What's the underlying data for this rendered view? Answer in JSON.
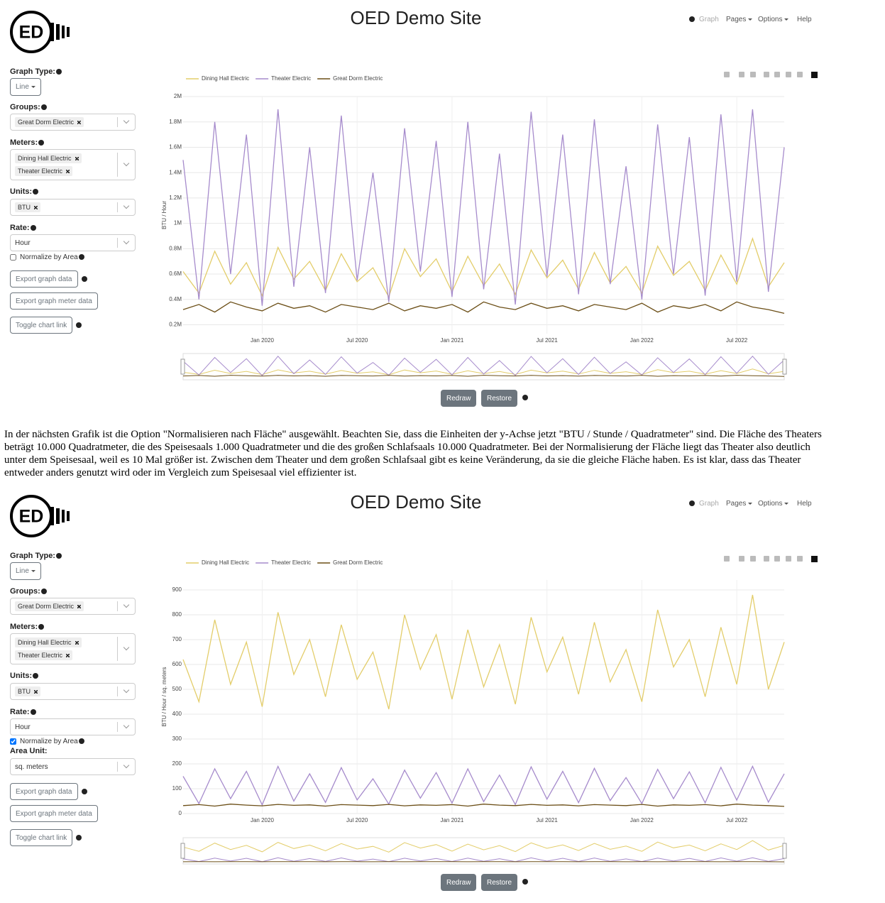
{
  "paragraph": "In der nächsten Grafik ist die Option \"Normalisieren nach Fläche\" ausgewählt. Beachten Sie, dass die Einheiten der y-Achse jetzt \"BTU / Stunde / Quadratmeter\" sind. Die Fläche des Theaters beträgt 10.000 Quadratmeter, die des Speisesaals 1.000 Quadratmeter und die des großen Schlafsaals 10.000 Quadratmeter. Bei der Normalisierung der Fläche liegt das Theater also deutlich unter dem Speisesaal, weil es 10 Mal größer ist. Zwischen dem Theater und dem großen Schlafsaal gibt es keine Veränderung, da sie die gleiche Fläche haben. Es ist klar, dass das Theater entweder anders genutzt wird oder im Vergleich zum Speisesaal viel effizienter ist.",
  "screens": [
    {
      "header": {
        "logo": "ED",
        "title": "OED Demo Site",
        "nav": [
          "Graph",
          "Pages",
          "Options",
          "Help"
        ]
      },
      "sidebar": {
        "graph_type_label": "Graph Type:",
        "graph_type": "Line",
        "groups_label": "Groups:",
        "groups": [
          "Great Dorm Electric"
        ],
        "meters_label": "Meters:",
        "meters": [
          "Dining Hall Electric",
          "Theater Electric"
        ],
        "units_label": "Units:",
        "units": [
          "BTU"
        ],
        "rate_label": "Rate:",
        "rate": "Hour",
        "normalize_label": "Normalize by Area",
        "normalize": false,
        "buttons": [
          "Export graph data",
          "Export graph meter data",
          "Toggle chart link"
        ]
      },
      "chart_data": {
        "type": "line",
        "y_label": "BTU / Hour",
        "x": [
          "2019-08",
          "2019-09",
          "2019-10",
          "2019-11",
          "2019-12",
          "2020-01",
          "2020-02",
          "2020-03",
          "2020-04",
          "2020-05",
          "2020-06",
          "2020-07",
          "2020-08",
          "2020-09",
          "2020-10",
          "2020-11",
          "2020-12",
          "2021-01",
          "2021-02",
          "2021-03",
          "2021-04",
          "2021-05",
          "2021-06",
          "2021-07",
          "2021-08",
          "2021-09",
          "2021-10",
          "2021-11",
          "2021-12",
          "2022-01",
          "2022-02",
          "2022-03",
          "2022-04",
          "2022-05",
          "2022-06",
          "2022-07",
          "2022-08",
          "2022-09",
          "2022-10"
        ],
        "xlim": [
          "2019-08",
          "2022-10"
        ],
        "xticks": [
          {
            "value": "2020-01",
            "label": "Jan 2020"
          },
          {
            "value": "2020-07",
            "label": "Jul 2020"
          },
          {
            "value": "2021-01",
            "label": "Jan 2021"
          },
          {
            "value": "2021-07",
            "label": "Jul 2021"
          },
          {
            "value": "2022-01",
            "label": "Jan 2022"
          },
          {
            "value": "2022-07",
            "label": "Jul 2022"
          }
        ],
        "ylim": [
          130000,
          2000000
        ],
        "yticks": [
          {
            "value": 200000,
            "label": "0.2M"
          },
          {
            "value": 400000,
            "label": "0.4M"
          },
          {
            "value": 600000,
            "label": "0.6M"
          },
          {
            "value": 800000,
            "label": "0.8M"
          },
          {
            "value": 1000000,
            "label": "1M"
          },
          {
            "value": 1200000,
            "label": "1.2M"
          },
          {
            "value": 1400000,
            "label": "1.4M"
          },
          {
            "value": 1600000,
            "label": "1.6M"
          },
          {
            "value": 1800000,
            "label": "1.8M"
          },
          {
            "value": 2000000,
            "label": "2M"
          }
        ],
        "grid": true,
        "series": [
          {
            "name": "Dining Hall Electric",
            "color": "#e3cd6a",
            "values": [
              620000,
              450000,
              780000,
              520000,
              690000,
              430000,
              810000,
              560000,
              700000,
              470000,
              760000,
              540000,
              650000,
              420000,
              800000,
              580000,
              720000,
              460000,
              740000,
              510000,
              680000,
              440000,
              790000,
              570000,
              710000,
              480000,
              770000,
              530000,
              660000,
              450000,
              820000,
              590000,
              700000,
              470000,
              750000,
              520000,
              880000,
              500000,
              690000
            ]
          },
          {
            "name": "Theater Electric",
            "color": "#a68bcc",
            "values": [
              1500000,
              400000,
              1800000,
              600000,
              1700000,
              350000,
              1900000,
              500000,
              1600000,
              450000,
              1850000,
              550000,
              1400000,
              380000,
              1750000,
              620000,
              1650000,
              420000,
              1800000,
              480000,
              1550000,
              360000,
              1880000,
              580000,
              1700000,
              440000,
              1820000,
              520000,
              1450000,
              400000,
              1780000,
              600000,
              1680000,
              430000,
              1860000,
              540000,
              1900000,
              460000,
              1600000
            ]
          },
          {
            "name": "Great Dorm Electric",
            "color": "#6b4e16",
            "values": [
              320000,
              360000,
              300000,
              380000,
              340000,
              310000,
              370000,
              330000,
              350000,
              300000,
              360000,
              340000,
              320000,
              370000,
              310000,
              350000,
              330000,
              360000,
              300000,
              380000,
              340000,
              320000,
              370000,
              330000,
              350000,
              310000,
              360000,
              340000,
              320000,
              370000,
              300000,
              350000,
              330000,
              360000,
              310000,
              380000,
              340000,
              320000,
              290000
            ]
          }
        ]
      },
      "chart_buttons": [
        "Redraw",
        "Restore"
      ]
    },
    {
      "header": {
        "logo": "ED",
        "title": "OED Demo Site",
        "nav": [
          "Graph",
          "Pages",
          "Options",
          "Help"
        ]
      },
      "sidebar": {
        "graph_type_label": "Graph Type:",
        "graph_type": "Line",
        "groups_label": "Groups:",
        "groups": [
          "Great Dorm Electric"
        ],
        "meters_label": "Meters:",
        "meters": [
          "Dining Hall Electric",
          "Theater Electric"
        ],
        "units_label": "Units:",
        "units": [
          "BTU"
        ],
        "rate_label": "Rate:",
        "rate": "Hour",
        "normalize_label": "Normalize by Area",
        "normalize": true,
        "area_unit_label": "Area Unit:",
        "area_unit": "sq. meters",
        "buttons": [
          "Export graph data",
          "Export graph meter data",
          "Toggle chart link"
        ]
      },
      "chart_data": {
        "type": "line",
        "y_label": "BTU / Hour / sq. meters",
        "x": [
          "2019-08",
          "2019-09",
          "2019-10",
          "2019-11",
          "2019-12",
          "2020-01",
          "2020-02",
          "2020-03",
          "2020-04",
          "2020-05",
          "2020-06",
          "2020-07",
          "2020-08",
          "2020-09",
          "2020-10",
          "2020-11",
          "2020-12",
          "2021-01",
          "2021-02",
          "2021-03",
          "2021-04",
          "2021-05",
          "2021-06",
          "2021-07",
          "2021-08",
          "2021-09",
          "2021-10",
          "2021-11",
          "2021-12",
          "2022-01",
          "2022-02",
          "2022-03",
          "2022-04",
          "2022-05",
          "2022-06",
          "2022-07",
          "2022-08",
          "2022-09",
          "2022-10"
        ],
        "xlim": [
          "2019-08",
          "2022-10"
        ],
        "xticks": [
          {
            "value": "2020-01",
            "label": "Jan 2020"
          },
          {
            "value": "2020-07",
            "label": "Jul 2020"
          },
          {
            "value": "2021-01",
            "label": "Jan 2021"
          },
          {
            "value": "2021-07",
            "label": "Jul 2021"
          },
          {
            "value": "2022-01",
            "label": "Jan 2022"
          },
          {
            "value": "2022-07",
            "label": "Jul 2022"
          }
        ],
        "ylim": [
          0,
          940
        ],
        "yticks": [
          0,
          100,
          200,
          300,
          400,
          500,
          600,
          700,
          800,
          900
        ],
        "grid": true,
        "series": [
          {
            "name": "Dining Hall Electric",
            "color": "#e3cd6a",
            "values": [
              620,
              450,
              780,
              520,
              690,
              430,
              810,
              560,
              700,
              470,
              760,
              540,
              650,
              420,
              800,
              580,
              720,
              460,
              740,
              510,
              680,
              440,
              790,
              570,
              710,
              480,
              770,
              530,
              660,
              450,
              820,
              590,
              700,
              470,
              750,
              520,
              880,
              500,
              690
            ]
          },
          {
            "name": "Theater Electric",
            "color": "#a68bcc",
            "values": [
              150,
              40,
              180,
              60,
              170,
              35,
              190,
              50,
              160,
              45,
              185,
              55,
              140,
              38,
              175,
              62,
              165,
              42,
              180,
              48,
              155,
              36,
              188,
              58,
              170,
              44,
              182,
              52,
              145,
              40,
              178,
              60,
              168,
              43,
              186,
              54,
              190,
              46,
              160
            ]
          },
          {
            "name": "Great Dorm Electric",
            "color": "#6b4e16",
            "values": [
              32,
              36,
              30,
              38,
              34,
              31,
              37,
              33,
              35,
              30,
              36,
              34,
              32,
              37,
              31,
              35,
              33,
              36,
              30,
              38,
              34,
              32,
              37,
              33,
              35,
              31,
              36,
              34,
              32,
              37,
              30,
              35,
              33,
              36,
              31,
              38,
              34,
              32,
              29
            ]
          }
        ]
      },
      "chart_buttons": [
        "Redraw",
        "Restore"
      ]
    }
  ]
}
